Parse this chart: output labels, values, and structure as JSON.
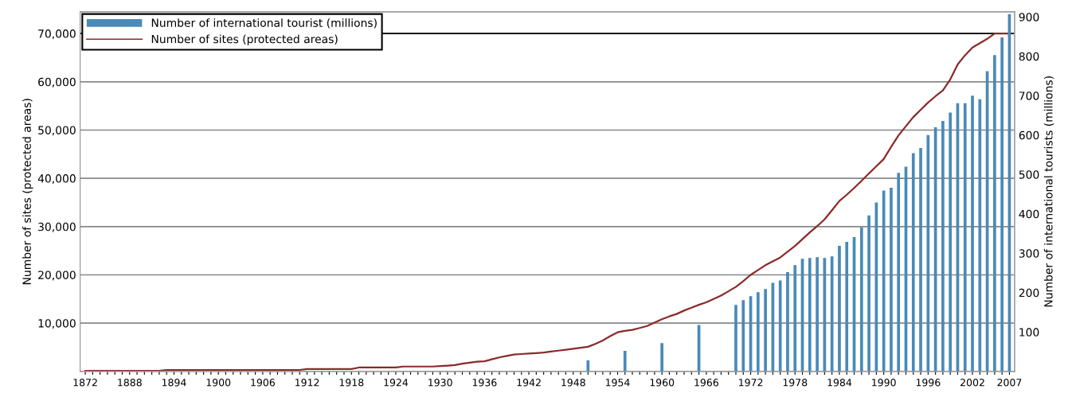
{
  "chart_data": {
    "type": "bar",
    "categories": [
      "1872",
      null,
      null,
      null,
      null,
      null,
      "1888",
      null,
      null,
      null,
      null,
      null,
      "1894",
      null,
      null,
      null,
      null,
      null,
      "1900",
      null,
      null,
      null,
      null,
      null,
      "1906",
      null,
      null,
      null,
      null,
      null,
      "1912",
      null,
      null,
      null,
      null,
      null,
      "1918",
      null,
      null,
      null,
      null,
      null,
      "1924",
      null,
      null,
      null,
      null,
      null,
      "1930",
      null,
      null,
      null,
      null,
      null,
      "1936",
      null,
      null,
      null,
      null,
      null,
      "1942",
      null,
      null,
      null,
      null,
      null,
      "1948",
      null,
      null,
      null,
      null,
      null,
      "1954",
      null,
      null,
      null,
      null,
      null,
      "1960",
      null,
      null,
      null,
      null,
      null,
      "1966",
      null,
      null,
      null,
      null,
      null,
      "1972",
      null,
      null,
      null,
      null,
      null,
      "1978",
      null,
      null,
      null,
      null,
      null,
      "1984",
      null,
      null,
      null,
      null,
      null,
      "1990",
      null,
      null,
      null,
      null,
      null,
      "1996",
      null,
      null,
      null,
      null,
      null,
      "2002",
      null,
      null,
      null,
      null,
      "2007"
    ],
    "series": [
      {
        "name": "Number of international tourist (millions)",
        "axis": "y2",
        "color": "#4a8ab8",
        "values": [
          null,
          null,
          null,
          null,
          null,
          null,
          null,
          null,
          null,
          null,
          null,
          null,
          null,
          null,
          null,
          null,
          null,
          null,
          null,
          null,
          null,
          null,
          null,
          null,
          null,
          null,
          null,
          null,
          null,
          null,
          null,
          null,
          null,
          null,
          null,
          null,
          null,
          null,
          null,
          null,
          null,
          null,
          null,
          null,
          null,
          null,
          null,
          null,
          null,
          null,
          null,
          null,
          null,
          null,
          null,
          null,
          null,
          null,
          null,
          null,
          null,
          null,
          null,
          null,
          null,
          null,
          null,
          null,
          28,
          null,
          null,
          null,
          null,
          52,
          null,
          null,
          null,
          null,
          72,
          null,
          null,
          null,
          null,
          118,
          null,
          null,
          null,
          null,
          169,
          181,
          191,
          201,
          209,
          225,
          231,
          252,
          270,
          286,
          288,
          290,
          288,
          292,
          319,
          329,
          341,
          366,
          396,
          429,
          459,
          466,
          504,
          520,
          554,
          567,
          600,
          620,
          636,
          657,
          681,
          681,
          700,
          691,
          762,
          803,
          848,
          907
        ]
      },
      {
        "name": "Number of sites (protected areas)",
        "type": "line",
        "color": "#8b2a2a",
        "values": [
          100,
          100,
          100,
          100,
          100,
          100,
          100,
          100,
          100,
          100,
          100,
          300,
          300,
          300,
          300,
          300,
          300,
          300,
          300,
          300,
          300,
          300,
          300,
          300,
          300,
          300,
          300,
          300,
          300,
          300,
          500,
          500,
          500,
          500,
          500,
          500,
          500,
          800,
          800,
          800,
          800,
          800,
          800,
          1000,
          1000,
          1000,
          1000,
          1000,
          1100,
          1200,
          1300,
          1600,
          1800,
          2000,
          2100,
          2500,
          2900,
          3200,
          3500,
          3600,
          3700,
          3800,
          3900,
          4100,
          4300,
          4500,
          4700,
          4900,
          5100,
          5700,
          6400,
          7300,
          8100,
          8400,
          8600,
          9000,
          9400,
          10100,
          10800,
          11400,
          11900,
          12600,
          13200,
          13800,
          14300,
          15000,
          15700,
          16600,
          17500,
          18700,
          20000,
          21000,
          22000,
          22800,
          23600,
          24800,
          26000,
          27400,
          28800,
          30100,
          31500,
          33400,
          35300,
          36600,
          38000,
          39500,
          41000,
          42500,
          44000,
          46500,
          48900,
          50800,
          52700,
          54200,
          55700,
          57000,
          58200,
          60500,
          63600,
          65500,
          67100,
          68000,
          68900,
          70000,
          70000,
          70000
        ]
      }
    ],
    "ylabel": "Number of sites (protected areas)",
    "y2label": "Number of international tourists (millions)",
    "ylim": [
      0,
      74500
    ],
    "yticks": [
      {
        "value": 10000,
        "label": "10,000"
      },
      {
        "value": 20000,
        "label": "20,000"
      },
      {
        "value": 30000,
        "label": "30,000"
      },
      {
        "value": 40000,
        "label": "40,000"
      },
      {
        "value": 50000,
        "label": "50,000"
      },
      {
        "value": 60000,
        "label": "60,000"
      },
      {
        "value": 70000,
        "label": "70,000"
      }
    ],
    "y2lim": [
      0,
      913
    ],
    "y2ticks": [
      100,
      200,
      300,
      400,
      500,
      600,
      700,
      800,
      900
    ],
    "ref_lines": [
      {
        "axis": "y",
        "value": 70000,
        "color": "#000000"
      }
    ],
    "grid": "y",
    "legend": "top left"
  }
}
